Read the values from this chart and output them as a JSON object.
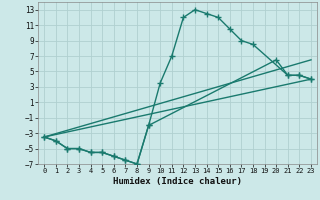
{
  "xlabel": "Humidex (Indice chaleur)",
  "bg_color": "#cce8e8",
  "grid_color": "#b0d0d0",
  "line_color": "#1a7a6e",
  "line_width": 1.0,
  "marker": "+",
  "marker_size": 4,
  "xlim": [
    -0.5,
    23.5
  ],
  "ylim": [
    -7,
    14
  ],
  "xticks": [
    0,
    1,
    2,
    3,
    4,
    5,
    6,
    7,
    8,
    9,
    10,
    11,
    12,
    13,
    14,
    15,
    16,
    17,
    18,
    19,
    20,
    21,
    22,
    23
  ],
  "yticks": [
    -7,
    -5,
    -3,
    -1,
    1,
    3,
    5,
    7,
    9,
    11,
    13
  ],
  "series": [
    {
      "x": [
        0,
        1,
        2,
        3,
        4,
        5,
        6,
        7,
        8,
        9,
        10,
        11,
        12,
        13,
        14,
        15,
        16,
        17,
        18,
        19,
        20,
        21,
        22,
        23
      ],
      "y": [
        -3.5,
        -4.0,
        -5.0,
        -5.0,
        -5.5,
        -5.5,
        -6.0,
        -6.5,
        -7.0,
        -2.0,
        3.5,
        7.0,
        12.0,
        13.0,
        12.5,
        12.0,
        10.5,
        9.0,
        8.5,
        null,
        null,
        null,
        null,
        null
      ],
      "has_markers": true
    },
    {
      "x": [
        0,
        1,
        2,
        3,
        4,
        5,
        6,
        7,
        8,
        9,
        10,
        11,
        12,
        13,
        14,
        15,
        16,
        17,
        18,
        19,
        20,
        21,
        22,
        23
      ],
      "y": [
        -3.5,
        -4.0,
        -5.0,
        -5.0,
        -5.5,
        -5.5,
        -6.0,
        -6.5,
        -7.0,
        -2.0,
        null,
        null,
        null,
        null,
        null,
        null,
        null,
        null,
        null,
        null,
        null,
        null,
        null,
        null
      ],
      "has_markers": true,
      "extend_x": [
        18,
        19,
        20,
        21,
        22,
        23
      ],
      "extend_y": [
        8.5,
        null,
        6.5,
        4.5,
        4.5,
        4.0
      ]
    },
    {
      "x": [
        0,
        23
      ],
      "y": [
        -3.5,
        6.5
      ],
      "has_markers": false
    },
    {
      "x": [
        0,
        23
      ],
      "y": [
        -3.5,
        4.0
      ],
      "has_markers": false
    }
  ],
  "curve1_x": [
    0,
    1,
    2,
    3,
    4,
    5,
    6,
    7,
    8,
    9,
    10,
    11,
    12,
    13,
    14,
    15,
    16,
    17,
    18,
    21,
    22,
    23
  ],
  "curve1_y": [
    -3.5,
    -4.0,
    -5.0,
    -5.0,
    -5.5,
    -5.5,
    -6.0,
    -6.5,
    -7.0,
    -2.0,
    3.5,
    7.0,
    12.0,
    13.0,
    12.5,
    12.0,
    10.5,
    9.0,
    8.5,
    4.5,
    4.5,
    4.0
  ],
  "curve2_x": [
    0,
    1,
    2,
    3,
    4,
    5,
    6,
    7,
    8,
    9,
    20,
    21,
    22,
    23
  ],
  "curve2_y": [
    -3.5,
    -4.0,
    -5.0,
    -5.0,
    -5.5,
    -5.5,
    -6.0,
    -6.5,
    -7.0,
    -2.0,
    6.5,
    4.5,
    4.5,
    4.0
  ],
  "line1_x": [
    0,
    23
  ],
  "line1_y": [
    -3.5,
    6.5
  ],
  "line2_x": [
    0,
    23
  ],
  "line2_y": [
    -3.5,
    4.0
  ]
}
